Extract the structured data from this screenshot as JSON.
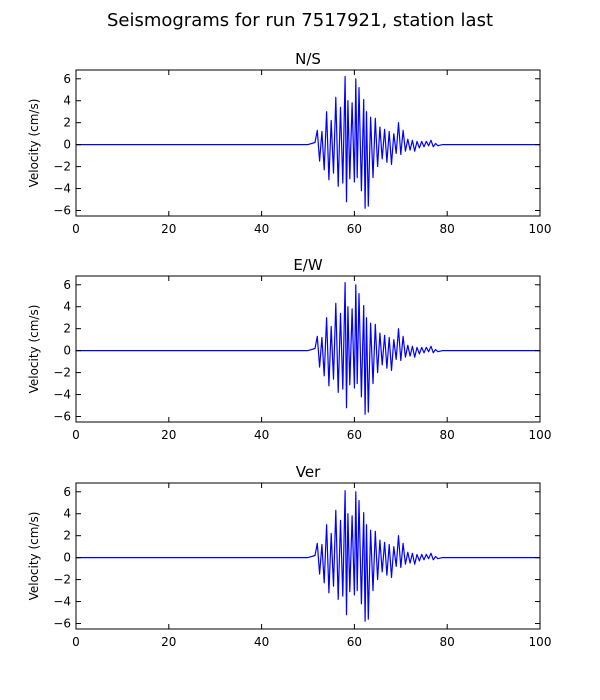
{
  "figure": {
    "title": "Seismograms for run 7517921, station last"
  },
  "chart_data": [
    {
      "type": "line",
      "title": "N/S",
      "xlabel": "",
      "ylabel": "Velocity (cm/s)",
      "xlim": [
        0,
        100
      ],
      "ylim": [
        -6.5,
        6.8
      ],
      "xticks": [
        0,
        20,
        40,
        60,
        80,
        100
      ],
      "yticks": [
        -6,
        -4,
        -2,
        0,
        2,
        4,
        6
      ],
      "grid": false,
      "color": "#0000ff",
      "series": [
        {
          "x": [
            0,
            50,
            51.5,
            52,
            52.5,
            53,
            53.5,
            54,
            54.5,
            55,
            55.5,
            56,
            56.5,
            57,
            57.5,
            58,
            58.3,
            58.6,
            59,
            59.5,
            60,
            60.3,
            60.6,
            61,
            61.5,
            62,
            62.3,
            62.6,
            63,
            63.5,
            64,
            64.5,
            65,
            65.5,
            66,
            66.5,
            67,
            67.5,
            68,
            68.5,
            69,
            69.5,
            70,
            70.5,
            71,
            71.5,
            72,
            72.5,
            73,
            73.5,
            74,
            74.5,
            75,
            75.5,
            76,
            76.5,
            77,
            77.5,
            78,
            79,
            80,
            100
          ],
          "y": [
            0,
            0,
            0.2,
            1.3,
            -1.5,
            1.2,
            -2.3,
            3.0,
            -3.2,
            2.2,
            -2.6,
            4.3,
            -3.8,
            3.4,
            -3.5,
            6.2,
            -5.2,
            4.0,
            -3.1,
            3.8,
            -3.4,
            6.0,
            -3.0,
            5.2,
            -4.2,
            4.1,
            -5.8,
            3.0,
            -5.6,
            2.5,
            -3.0,
            2.4,
            -2.0,
            1.6,
            -1.3,
            1.4,
            -1.6,
            1.2,
            -1.8,
            1.0,
            -0.8,
            2.0,
            -0.9,
            1.3,
            -0.6,
            0.5,
            -0.5,
            0.4,
            -0.6,
            0.3,
            -0.3,
            0.3,
            -0.2,
            0.3,
            -0.1,
            0.4,
            -0.2,
            0.1,
            -0.1,
            0,
            0,
            0
          ]
        }
      ]
    },
    {
      "type": "line",
      "title": "E/W",
      "xlabel": "",
      "ylabel": "Velocity (cm/s)",
      "xlim": [
        0,
        100
      ],
      "ylim": [
        -6.5,
        6.8
      ],
      "xticks": [
        0,
        20,
        40,
        60,
        80,
        100
      ],
      "yticks": [
        -6,
        -4,
        -2,
        0,
        2,
        4,
        6
      ],
      "grid": false,
      "color": "#0000ff",
      "series": [
        {
          "x": [
            0,
            50,
            51.5,
            52,
            52.5,
            53,
            53.5,
            54,
            54.5,
            55,
            55.5,
            56,
            56.5,
            57,
            57.5,
            58,
            58.3,
            58.6,
            59,
            59.5,
            60,
            60.3,
            60.6,
            61,
            61.5,
            62,
            62.3,
            62.6,
            63,
            63.5,
            64,
            64.5,
            65,
            65.5,
            66,
            66.5,
            67,
            67.5,
            68,
            68.5,
            69,
            69.5,
            70,
            70.5,
            71,
            71.5,
            72,
            72.5,
            73,
            73.5,
            74,
            74.5,
            75,
            75.5,
            76,
            76.5,
            77,
            77.5,
            78,
            79,
            80,
            100
          ],
          "y": [
            0,
            0,
            0.2,
            1.3,
            -1.5,
            1.2,
            -2.3,
            3.0,
            -3.2,
            2.2,
            -2.6,
            4.3,
            -3.8,
            3.4,
            -3.5,
            6.2,
            -5.2,
            4.0,
            -3.1,
            3.8,
            -3.4,
            6.0,
            -3.0,
            5.2,
            -4.2,
            4.1,
            -5.8,
            3.0,
            -5.6,
            2.5,
            -3.0,
            2.4,
            -2.0,
            1.6,
            -1.3,
            1.4,
            -1.6,
            1.2,
            -1.8,
            1.0,
            -0.8,
            2.0,
            -0.9,
            1.3,
            -0.6,
            0.5,
            -0.5,
            0.4,
            -0.6,
            0.3,
            -0.3,
            0.3,
            -0.2,
            0.3,
            -0.1,
            0.4,
            -0.2,
            0.1,
            -0.1,
            0,
            0,
            0
          ]
        }
      ]
    },
    {
      "type": "line",
      "title": "Ver",
      "xlabel": "",
      "ylabel": "Velocity (cm/s)",
      "xlim": [
        0,
        100
      ],
      "ylim": [
        -6.5,
        6.8
      ],
      "xticks": [
        0,
        20,
        40,
        60,
        80,
        100
      ],
      "yticks": [
        -6,
        -4,
        -2,
        0,
        2,
        4,
        6
      ],
      "grid": false,
      "color": "#0000ff",
      "series": [
        {
          "x": [
            0,
            50,
            51.5,
            52,
            52.5,
            53,
            53.5,
            54,
            54.5,
            55,
            55.5,
            56,
            56.5,
            57,
            57.5,
            58,
            58.3,
            58.6,
            59,
            59.5,
            60,
            60.3,
            60.6,
            61,
            61.5,
            62,
            62.3,
            62.6,
            63,
            63.5,
            64,
            64.5,
            65,
            65.5,
            66,
            66.5,
            67,
            67.5,
            68,
            68.5,
            69,
            69.5,
            70,
            70.5,
            71,
            71.5,
            72,
            72.5,
            73,
            73.5,
            74,
            74.5,
            75,
            75.5,
            76,
            76.5,
            77,
            77.5,
            78,
            79,
            80,
            100
          ],
          "y": [
            0,
            0,
            0.2,
            1.3,
            -1.5,
            1.2,
            -2.3,
            3.0,
            -3.2,
            2.2,
            -2.6,
            4.3,
            -3.8,
            3.4,
            -3.5,
            6.1,
            -5.2,
            4.0,
            -3.1,
            3.8,
            -3.4,
            6.0,
            -3.0,
            5.2,
            -4.2,
            4.1,
            -5.8,
            3.0,
            -5.6,
            2.5,
            -3.0,
            2.4,
            -2.0,
            1.6,
            -1.3,
            1.4,
            -1.6,
            1.2,
            -1.8,
            1.0,
            -0.8,
            2.0,
            -0.9,
            1.3,
            -0.6,
            0.5,
            -0.5,
            0.4,
            -0.6,
            0.3,
            -0.3,
            0.3,
            -0.2,
            0.3,
            -0.1,
            0.4,
            -0.2,
            0.1,
            -0.1,
            0,
            0,
            0
          ]
        }
      ]
    }
  ]
}
